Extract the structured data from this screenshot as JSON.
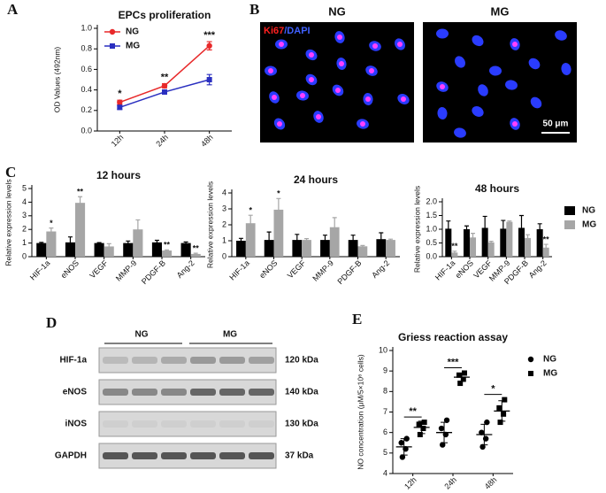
{
  "panels": [
    "A",
    "B",
    "C",
    "D",
    "E"
  ],
  "images": {
    "stain_red": "Ki67",
    "stain_blue": "/DAPI",
    "labels": [
      "NG",
      "MG"
    ],
    "scale_bar": "50 μm"
  },
  "blot": {
    "groups": [
      "NG",
      "MG"
    ],
    "rows": [
      {
        "protein": "HIF-1a",
        "size": "120 kDa"
      },
      {
        "protein": "eNOS",
        "size": "140 kDa"
      },
      {
        "protein": "iNOS",
        "size": "130 kDa"
      },
      {
        "protein": "GAPDH",
        "size": "37 kDa"
      }
    ]
  },
  "chart_data": [
    {
      "type": "line",
      "title": "EPCs proliferation",
      "y_label": "OD Values (492nm)",
      "categories": [
        "12h",
        "24h",
        "48h"
      ],
      "series": [
        {
          "name": "NG",
          "color": "#e8292a",
          "marker": "circle",
          "values": [
            0.28,
            0.44,
            0.83
          ],
          "errors": [
            0.02,
            0.02,
            0.04
          ]
        },
        {
          "name": "MG",
          "color": "#2a2fc0",
          "marker": "square",
          "values": [
            0.23,
            0.38,
            0.5
          ],
          "errors": [
            0.02,
            0.02,
            0.05
          ]
        }
      ],
      "annotations": [
        "*",
        "**",
        "***"
      ],
      "ylim": [
        0,
        1.0
      ],
      "yticks": [
        {
          "value": 0,
          "label": "0.0"
        },
        0.2,
        0.4,
        0.6,
        0.8,
        {
          "value": 1,
          "label": "1.0"
        }
      ],
      "legend": "upper left"
    },
    {
      "type": "bar",
      "title": "12 hours",
      "y_label": "Relative expression levels",
      "categories": [
        "HIF-1a",
        "eNOS",
        "VEGF",
        "MMP-9",
        "PDGF-B",
        "Ang-2"
      ],
      "series": [
        {
          "name": "NG",
          "color": "#000000",
          "values": [
            1.0,
            1.05,
            1.0,
            1.0,
            1.05,
            1.0
          ],
          "errors": [
            0.05,
            0.4,
            0.03,
            0.15,
            0.15,
            0.08
          ]
        },
        {
          "name": "MG",
          "color": "#a6a6a6",
          "values": [
            1.85,
            3.95,
            0.75,
            2.0,
            0.45,
            0.2
          ],
          "errors": [
            0.25,
            0.45,
            0.2,
            0.7,
            0.05,
            0.05
          ],
          "annotations": [
            "*",
            "**",
            null,
            null,
            "**",
            "**"
          ]
        }
      ],
      "ylim": [
        0,
        5
      ],
      "yticks": [
        0,
        1,
        2,
        3,
        4,
        5
      ]
    },
    {
      "type": "bar",
      "title": "24 hours",
      "y_label": "Relative expression levels",
      "categories": [
        "HIF-1a",
        "eNOS",
        "VEGF",
        "MMP-9",
        "PDGF-B",
        "Ang-2"
      ],
      "series": [
        {
          "name": "NG",
          "color": "#000000",
          "values": [
            1.0,
            1.05,
            1.05,
            1.05,
            1.05,
            1.1
          ],
          "errors": [
            0.15,
            0.5,
            0.35,
            0.3,
            0.3,
            0.4
          ]
        },
        {
          "name": "MG",
          "color": "#a6a6a6",
          "values": [
            2.1,
            2.95,
            1.05,
            1.85,
            0.65,
            1.05
          ],
          "errors": [
            0.5,
            0.7,
            0.08,
            0.6,
            0.05,
            0.05
          ],
          "annotations": [
            "*",
            "*",
            null,
            null,
            null,
            null
          ]
        }
      ],
      "ylim": [
        0,
        4
      ],
      "yticks": [
        0,
        1,
        2,
        3,
        4
      ]
    },
    {
      "type": "bar",
      "title": "48 hours",
      "y_label": "Relative expression levels",
      "categories": [
        "HIF-1a",
        "eNOS",
        "VEGF",
        "MMP-9",
        "PDGF-B",
        "Ang-2"
      ],
      "series": [
        {
          "name": "NG",
          "color": "#000000",
          "values": [
            1.02,
            1.0,
            1.05,
            1.02,
            1.05,
            1.0
          ],
          "errors": [
            0.28,
            0.12,
            0.42,
            0.3,
            0.45,
            0.2
          ]
        },
        {
          "name": "MG",
          "color": "#a6a6a6",
          "values": [
            0.15,
            0.7,
            0.52,
            1.27,
            0.68,
            0.33
          ],
          "errors": [
            0.05,
            0.15,
            0.04,
            0.03,
            0.12,
            0.12
          ],
          "annotations": [
            "**",
            null,
            null,
            null,
            null,
            "**"
          ]
        }
      ],
      "ylim": [
        0,
        2.0
      ],
      "yticks": [
        {
          "value": 0,
          "label": "0.0"
        },
        0.5,
        {
          "value": 1,
          "label": "1.0"
        },
        1.5,
        {
          "value": 2,
          "label": "2.0"
        }
      ],
      "legend": "right"
    },
    {
      "type": "dot",
      "title": "Griess reaction assay",
      "y_label": "NO concentration (μM/5×10⁶ cells)",
      "categories": [
        "12h",
        "24h",
        "48h"
      ],
      "series": [
        {
          "name": "NG",
          "color": "#000000",
          "marker": "circle",
          "values": [
            [
              4.8,
              5.2,
              5.5,
              5.7
            ],
            [
              5.4,
              5.9,
              6.2,
              6.6
            ],
            [
              5.3,
              5.7,
              6.0,
              6.5
            ]
          ],
          "means": [
            5.3,
            6.0,
            5.9
          ],
          "sds": [
            0.4,
            0.5,
            0.5
          ]
        },
        {
          "name": "MG",
          "color": "#000000",
          "marker": "square",
          "values": [
            [
              5.9,
              6.2,
              6.4,
              6.5
            ],
            [
              8.4,
              8.6,
              8.8,
              8.9
            ],
            [
              6.5,
              6.9,
              7.2,
              7.6
            ]
          ],
          "means": [
            6.25,
            8.7,
            7.05
          ],
          "sds": [
            0.3,
            0.2,
            0.5
          ]
        }
      ],
      "annotations": [
        "**",
        "***",
        "*"
      ],
      "ylim": [
        4,
        10
      ],
      "yticks": [
        4,
        5,
        6,
        7,
        8,
        9,
        10
      ],
      "legend": "right"
    }
  ]
}
